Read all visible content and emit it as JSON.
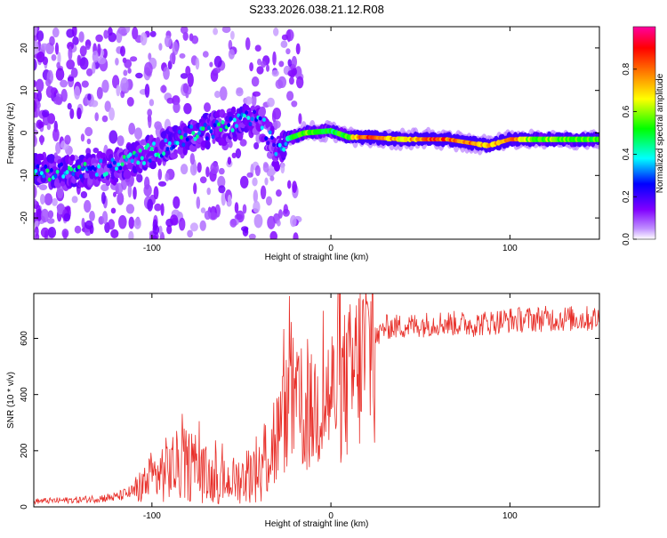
{
  "page": {
    "title": "S233.2026.038.21.12.R08"
  },
  "chart_data": [
    {
      "type": "heatmap",
      "name": "spectrogram",
      "title": "S233.2026.038.21.12.R08",
      "xlabel": "Height of straight line (km)",
      "ylabel": "Frequency (Hz)",
      "xlim": [
        -166,
        150
      ],
      "ylim": [
        -25,
        25
      ],
      "xticks": [
        -100,
        0,
        100
      ],
      "yticks": [
        -20,
        -10,
        0,
        10,
        20
      ],
      "colorbar": {
        "label": "Normalized spectral amplitude",
        "range": [
          0,
          1
        ],
        "ticks": [
          "0.0",
          "0.2",
          "0.4",
          "0.6",
          "0.8"
        ],
        "colormap": [
          "#ffffff",
          "#8000ff",
          "#0000ff",
          "#00ffff",
          "#00ff00",
          "#ffff00",
          "#ff8000",
          "#ff0000",
          "#ff00a0"
        ]
      },
      "ridge": [
        {
          "x": -160,
          "f": -9,
          "a": 0.45
        },
        {
          "x": -150,
          "f": -9,
          "a": 0.4
        },
        {
          "x": -140,
          "f": -9,
          "a": 0.45
        },
        {
          "x": -130,
          "f": -8.5,
          "a": 0.35
        },
        {
          "x": -120,
          "f": -8,
          "a": 0.4
        },
        {
          "x": -110,
          "f": -6,
          "a": 0.45
        },
        {
          "x": -100,
          "f": -4.5,
          "a": 0.4
        },
        {
          "x": -90,
          "f": -2.5,
          "a": 0.45
        },
        {
          "x": -80,
          "f": -0.5,
          "a": 0.4
        },
        {
          "x": -70,
          "f": 0.5,
          "a": 0.45
        },
        {
          "x": -60,
          "f": 1.5,
          "a": 0.4
        },
        {
          "x": -50,
          "f": 2.5,
          "a": 0.45
        },
        {
          "x": -40,
          "f": 3.5,
          "a": 0.35
        },
        {
          "x": -30,
          "f": -5,
          "a": 0.35
        },
        {
          "x": -25,
          "f": -1.5,
          "a": 0.45
        },
        {
          "x": -15,
          "f": 0,
          "a": 0.6
        },
        {
          "x": 0,
          "f": 0.5,
          "a": 0.5
        },
        {
          "x": 10,
          "f": -1,
          "a": 0.6
        },
        {
          "x": 20,
          "f": -1,
          "a": 0.9
        },
        {
          "x": 40,
          "f": -1.5,
          "a": 0.7
        },
        {
          "x": 55,
          "f": -1.5,
          "a": 0.9
        },
        {
          "x": 65,
          "f": -1.5,
          "a": 0.85
        },
        {
          "x": 80,
          "f": -2.5,
          "a": 0.8
        },
        {
          "x": 88,
          "f": -3,
          "a": 0.75
        },
        {
          "x": 100,
          "f": -1.5,
          "a": 0.85
        },
        {
          "x": 112,
          "f": -1.5,
          "a": 0.6
        },
        {
          "x": 125,
          "f": -1.5,
          "a": 0.6
        },
        {
          "x": 140,
          "f": -1.5,
          "a": 0.6
        },
        {
          "x": 150,
          "f": -1.5,
          "a": 0.55
        }
      ]
    },
    {
      "type": "line",
      "name": "snr",
      "xlabel": "Height of straight line (km)",
      "ylabel": "SNR (10 * v/v)",
      "xlim": [
        -166,
        150
      ],
      "ylim": [
        0,
        760
      ],
      "xticks": [
        -100,
        0,
        100
      ],
      "yticks": [
        0,
        200,
        400,
        600
      ],
      "color": "#e8302a",
      "envelope": [
        {
          "x": -166,
          "y": 20
        },
        {
          "x": -140,
          "y": 25
        },
        {
          "x": -120,
          "y": 35
        },
        {
          "x": -110,
          "y": 55
        },
        {
          "x": -100,
          "y": 100
        },
        {
          "x": -90,
          "y": 140
        },
        {
          "x": -80,
          "y": 150
        },
        {
          "x": -70,
          "y": 110
        },
        {
          "x": -60,
          "y": 90
        },
        {
          "x": -50,
          "y": 100
        },
        {
          "x": -40,
          "y": 150
        },
        {
          "x": -30,
          "y": 250
        },
        {
          "x": -22,
          "y": 380
        },
        {
          "x": -15,
          "y": 300
        },
        {
          "x": -8,
          "y": 360
        },
        {
          "x": 0,
          "y": 400
        },
        {
          "x": 10,
          "y": 440
        },
        {
          "x": 20,
          "y": 550
        },
        {
          "x": 30,
          "y": 640
        },
        {
          "x": 45,
          "y": 645
        },
        {
          "x": 60,
          "y": 655
        },
        {
          "x": 80,
          "y": 650
        },
        {
          "x": 100,
          "y": 665
        },
        {
          "x": 120,
          "y": 670
        },
        {
          "x": 150,
          "y": 670
        }
      ]
    }
  ]
}
